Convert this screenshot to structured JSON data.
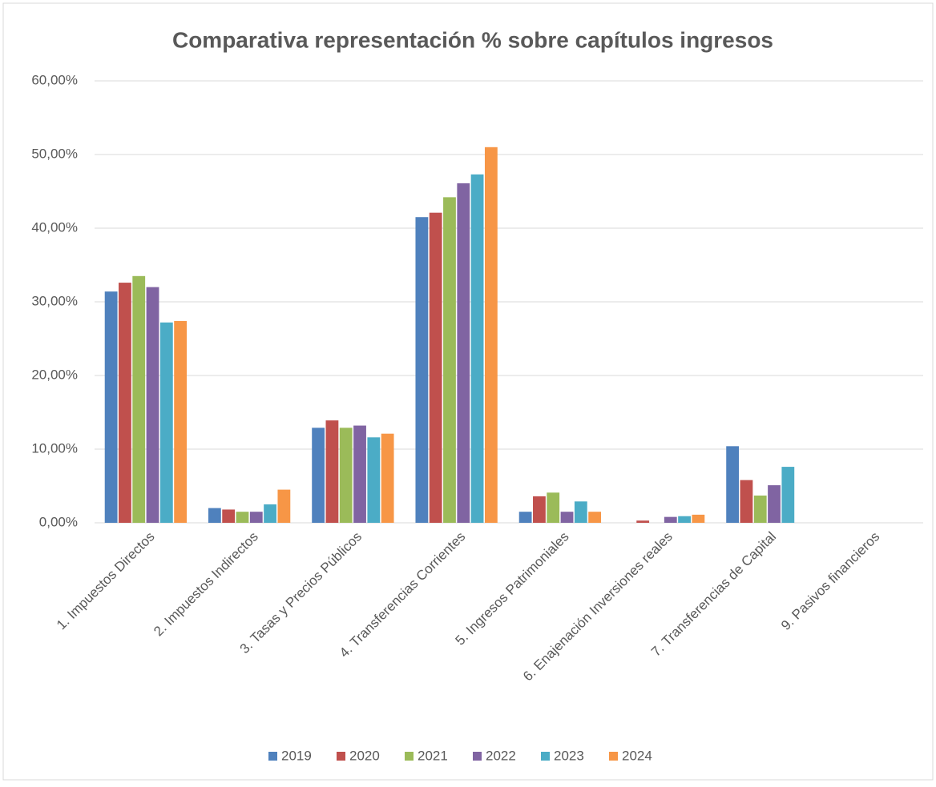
{
  "chart_data": {
    "type": "bar",
    "title": "Comparativa representación % sobre capítulos ingresos",
    "categories": [
      "1. Impuestos Directos",
      "2. Impuestos Indirectos",
      "3. Tasas y Precios Públicos",
      "4. Transferencias Corrientes",
      "5. Ingresos Patrimoniales",
      "6. Enajenación Inversiones reales",
      "7. Transferencias de Capital",
      "9. Pasivos financieros"
    ],
    "series": [
      {
        "name": "2019",
        "color": "#4f81bd",
        "values": [
          31.4,
          2.0,
          12.9,
          41.5,
          1.5,
          0,
          10.4,
          0
        ]
      },
      {
        "name": "2020",
        "color": "#c0504d",
        "values": [
          32.6,
          1.8,
          13.9,
          42.1,
          3.6,
          0.3,
          5.8,
          0
        ]
      },
      {
        "name": "2021",
        "color": "#9bbb59",
        "values": [
          33.5,
          1.5,
          12.9,
          44.2,
          4.1,
          0,
          3.7,
          0
        ]
      },
      {
        "name": "2022",
        "color": "#8064a2",
        "values": [
          32.0,
          1.5,
          13.2,
          46.1,
          1.5,
          0.8,
          5.1,
          0
        ]
      },
      {
        "name": "2023",
        "color": "#4bacc6",
        "values": [
          27.2,
          2.5,
          11.6,
          47.3,
          2.9,
          0.9,
          7.6,
          0
        ]
      },
      {
        "name": "2024",
        "color": "#f79646",
        "values": [
          27.4,
          4.5,
          12.1,
          51.0,
          1.5,
          1.1,
          0,
          0
        ]
      }
    ],
    "ylim": [
      0,
      60
    ],
    "yticks": [
      {
        "value": 0,
        "label": "0,00%"
      },
      {
        "value": 10,
        "label": "10,00%"
      },
      {
        "value": 20,
        "label": "20,00%"
      },
      {
        "value": 30,
        "label": "30,00%"
      },
      {
        "value": 40,
        "label": "40,00%"
      },
      {
        "value": 50,
        "label": "50,00%"
      },
      {
        "value": 60,
        "label": "60,00%"
      }
    ],
    "grid": true,
    "legend": "bottom"
  }
}
